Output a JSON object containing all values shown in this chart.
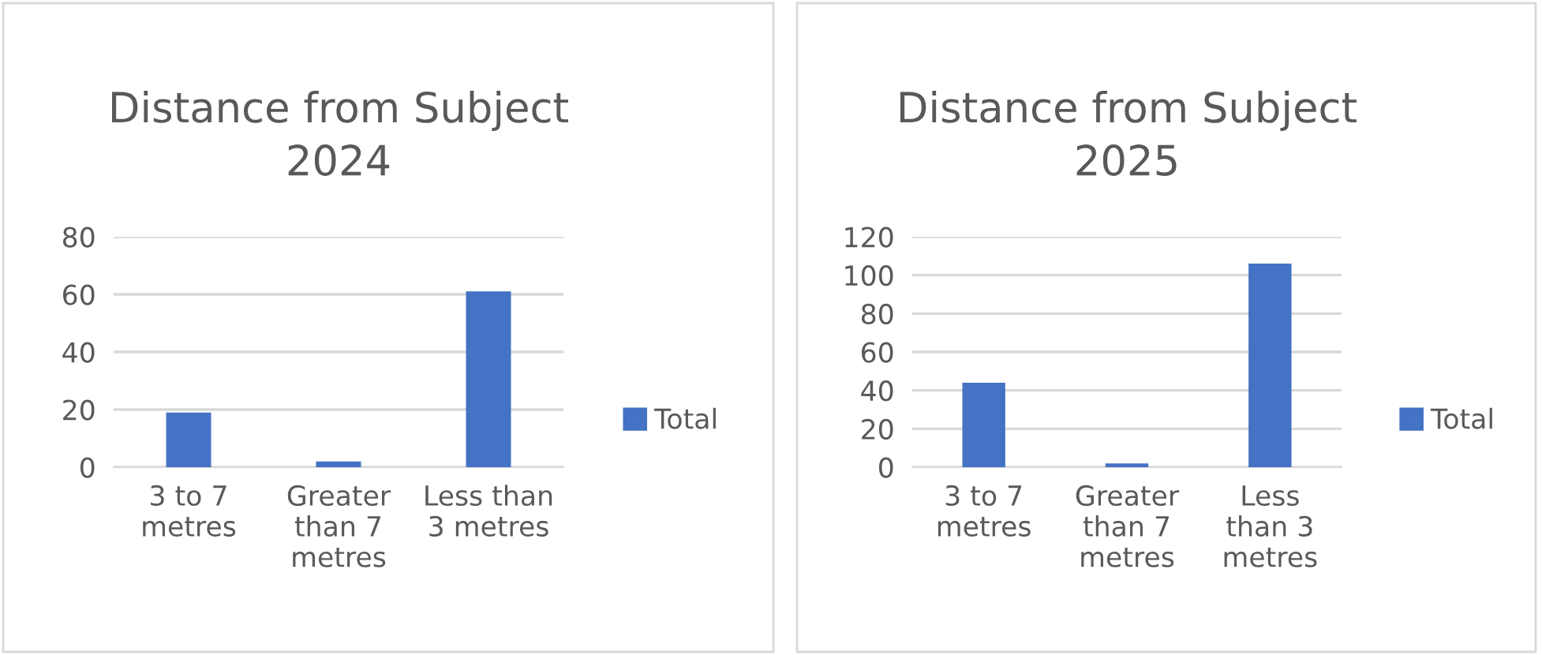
{
  "chart_data": [
    {
      "type": "bar",
      "title": "Distance from Subject\n2024",
      "categories": [
        "3 to 7\nmetres",
        "Greater\nthan 7\nmetres",
        "Less than\n3 metres"
      ],
      "series": [
        {
          "name": "Total",
          "color": "#4472c4",
          "values": [
            19,
            2,
            61
          ]
        }
      ],
      "ylim": [
        0,
        80
      ],
      "yticks": [
        0,
        20,
        40,
        60,
        80
      ],
      "grid": "y",
      "legend": "right"
    },
    {
      "type": "bar",
      "title": "Distance from Subject\n2025",
      "categories": [
        "3 to 7\nmetres",
        "Greater\nthan 7\nmetres",
        "Less\nthan 3\nmetres"
      ],
      "series": [
        {
          "name": "Total",
          "color": "#4472c4",
          "values": [
            44,
            2,
            106
          ]
        }
      ],
      "ylim": [
        0,
        120
      ],
      "yticks": [
        0,
        20,
        40,
        60,
        80,
        100,
        120
      ],
      "grid": "y",
      "legend": "right"
    }
  ]
}
